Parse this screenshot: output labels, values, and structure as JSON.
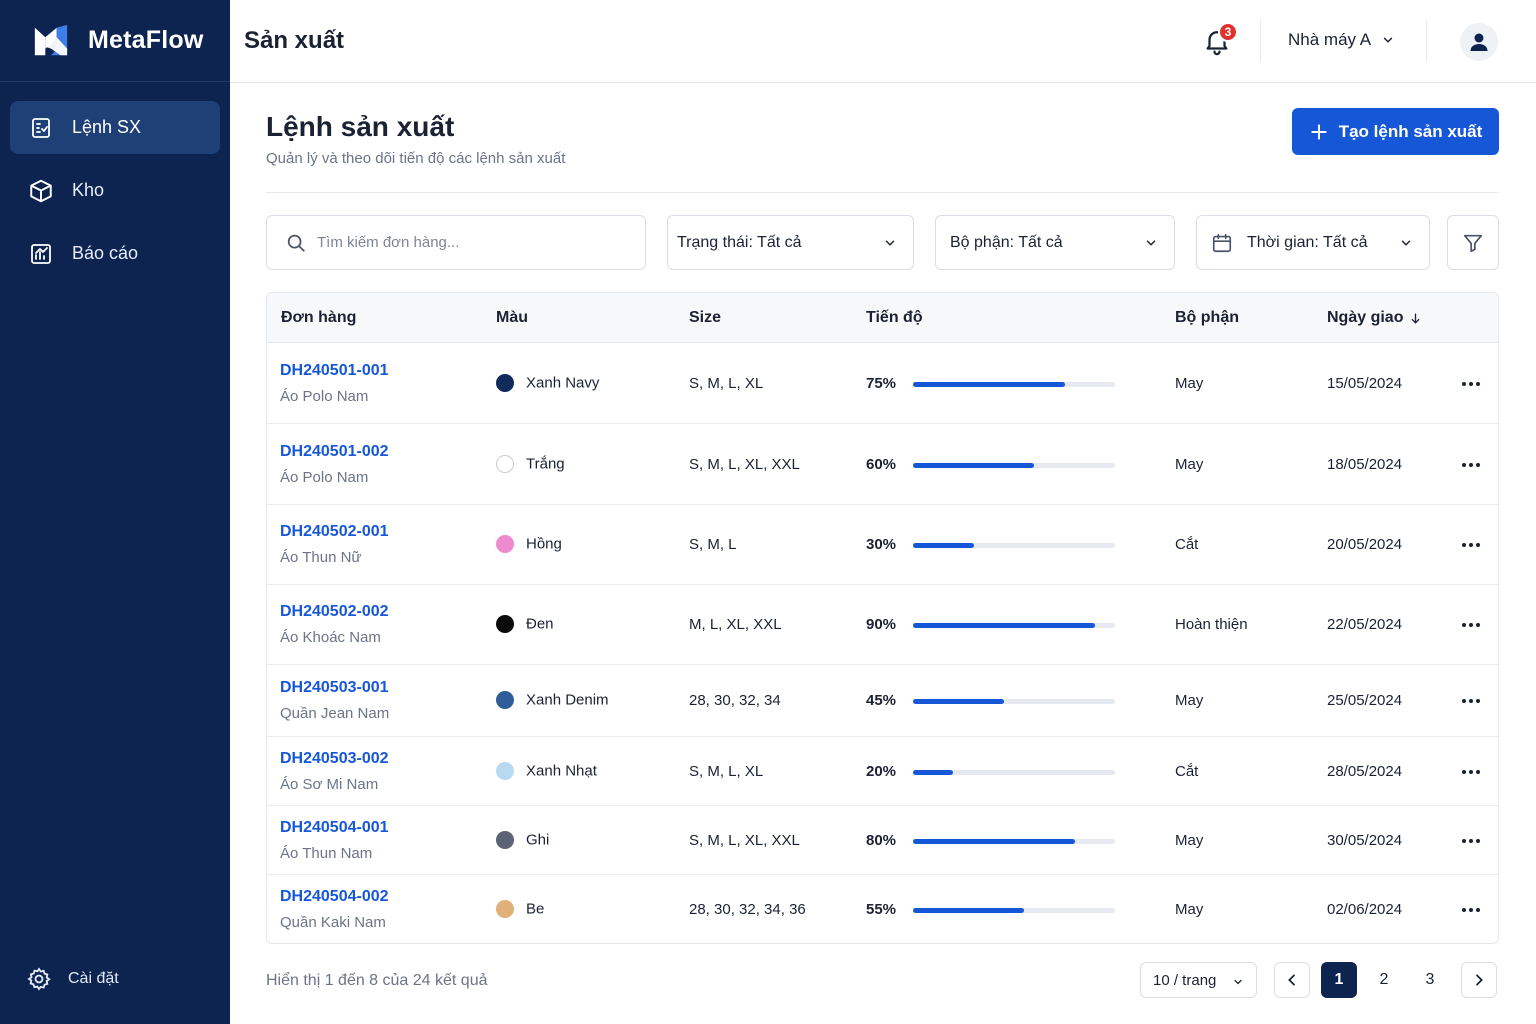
{
  "brand": {
    "name": "MetaFlow"
  },
  "sidebar": {
    "items": [
      {
        "label": "Lệnh SX",
        "icon": "clipboard-icon",
        "active": true
      },
      {
        "label": "Kho",
        "icon": "box-icon",
        "active": false
      },
      {
        "label": "Báo cáo",
        "icon": "chart-icon",
        "active": false
      }
    ],
    "settings_label": "Cài đặt"
  },
  "topbar": {
    "title": "Sản xuất",
    "notification_count": "3",
    "factory": "Nhà máy A"
  },
  "page": {
    "title": "Lệnh sản xuất",
    "subtitle": "Quản lý và theo dõi tiến độ các lệnh sản xuất",
    "create_label": "Tạo lệnh sản xuất"
  },
  "filters": {
    "search_placeholder": "Tìm kiếm đơn hàng...",
    "status": "Trạng thái: Tất cả",
    "department": "Bộ phận: Tất cả",
    "time": "Thời gian: Tất cả"
  },
  "table": {
    "headers": {
      "order": "Đơn hàng",
      "color": "Màu",
      "size": "Size",
      "progress": "Tiến độ",
      "department": "Bộ phận",
      "due": "Ngày giao"
    },
    "rows": [
      {
        "id": "DH240501-001",
        "product": "Áo Polo Nam",
        "color": "Xanh Navy",
        "swatch": "#102a5c",
        "sizes": "S, M, L, XL",
        "progress": 75,
        "progress_label": "75%",
        "department": "May",
        "due": "15/05/2024"
      },
      {
        "id": "DH240501-002",
        "product": "Áo Polo Nam",
        "color": "Trắng",
        "swatch": "#ffffff",
        "sizes": "S, M, L, XL, XXL",
        "progress": 60,
        "progress_label": "60%",
        "department": "May",
        "due": "18/05/2024"
      },
      {
        "id": "DH240502-001",
        "product": "Áo Thun Nữ",
        "color": "Hồng",
        "swatch": "#f08ad0",
        "sizes": "S, M, L",
        "progress": 30,
        "progress_label": "30%",
        "department": "Cắt",
        "due": "20/05/2024"
      },
      {
        "id": "DH240502-002",
        "product": "Áo Khoác Nam",
        "color": "Đen",
        "swatch": "#0a0a0a",
        "sizes": "M, L, XL, XXL",
        "progress": 90,
        "progress_label": "90%",
        "department": "Hoàn thiện",
        "due": "22/05/2024"
      },
      {
        "id": "DH240503-001",
        "product": "Quần Jean Nam",
        "color": "Xanh Denim",
        "swatch": "#2f5d99",
        "sizes": "28, 30, 32, 34",
        "progress": 45,
        "progress_label": "45%",
        "department": "May",
        "due": "25/05/2024"
      },
      {
        "id": "DH240503-002",
        "product": "Áo Sơ Mi Nam",
        "color": "Xanh Nhạt",
        "swatch": "#b9d9f0",
        "sizes": "S, M, L, XL",
        "progress": 20,
        "progress_label": "20%",
        "department": "Cắt",
        "due": "28/05/2024"
      },
      {
        "id": "DH240504-001",
        "product": "Áo Thun Nam",
        "color": "Ghi",
        "swatch": "#5a6273",
        "sizes": "S, M, L, XL, XXL",
        "progress": 80,
        "progress_label": "80%",
        "department": "May",
        "due": "30/05/2024"
      },
      {
        "id": "DH240504-002",
        "product": "Quần Kaki Nam",
        "color": "Be",
        "swatch": "#dfb07a",
        "sizes": "28, 30, 32, 34, 36",
        "progress": 55,
        "progress_label": "55%",
        "department": "May",
        "due": "02/06/2024"
      }
    ]
  },
  "footer": {
    "results": "Hiển thị 1 đến 8 của 24 kết quả",
    "per_page": "10 / trang",
    "pages": [
      "1",
      "2",
      "3"
    ]
  },
  "colors": {
    "sidebar": "#0d2350",
    "accent": "#1657d8",
    "badge": "#e0312f"
  }
}
